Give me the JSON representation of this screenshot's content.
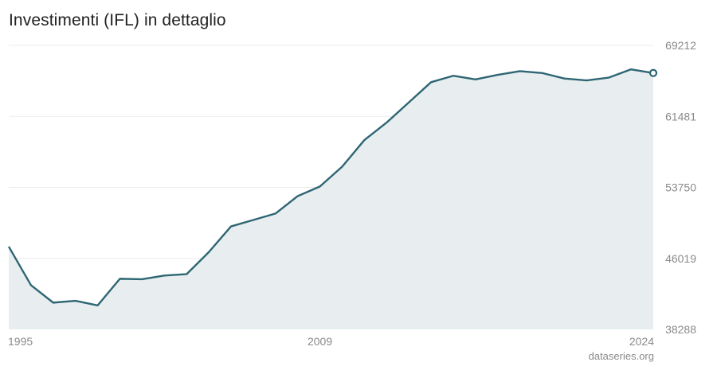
{
  "chart_data": {
    "type": "area",
    "title": "Investimenti (IFL) in dettaglio",
    "source": "dataseries.org",
    "xlabel": "",
    "ylabel": "",
    "x": [
      1995,
      1996,
      1997,
      1998,
      1999,
      2000,
      2001,
      2002,
      2003,
      2004,
      2005,
      2006,
      2007,
      2008,
      2009,
      2010,
      2011,
      2012,
      2013,
      2014,
      2015,
      2016,
      2017,
      2018,
      2019,
      2020,
      2021,
      2022,
      2023,
      2024
    ],
    "series": [
      {
        "values": [
          47300,
          43100,
          41200,
          41400,
          40900,
          43800,
          43750,
          44150,
          44300,
          46700,
          49500,
          50200,
          50900,
          52800,
          53850,
          56000,
          58900,
          60800,
          63000,
          65200,
          65900,
          65500,
          66000,
          66400,
          66200,
          65600,
          65400,
          65700,
          66600,
          66200
        ]
      }
    ],
    "ylim": [
      38288,
      69212
    ],
    "yticks": [
      38288,
      46019,
      53750,
      61481,
      69212
    ],
    "xticks": [
      1995,
      2009,
      2024
    ],
    "grid": true,
    "legend": "none",
    "colors": {
      "line": "#2e6673",
      "fill": "#e8eef0",
      "grid": "#ececec",
      "text": "#8a8a8a",
      "title": "#222222"
    }
  }
}
